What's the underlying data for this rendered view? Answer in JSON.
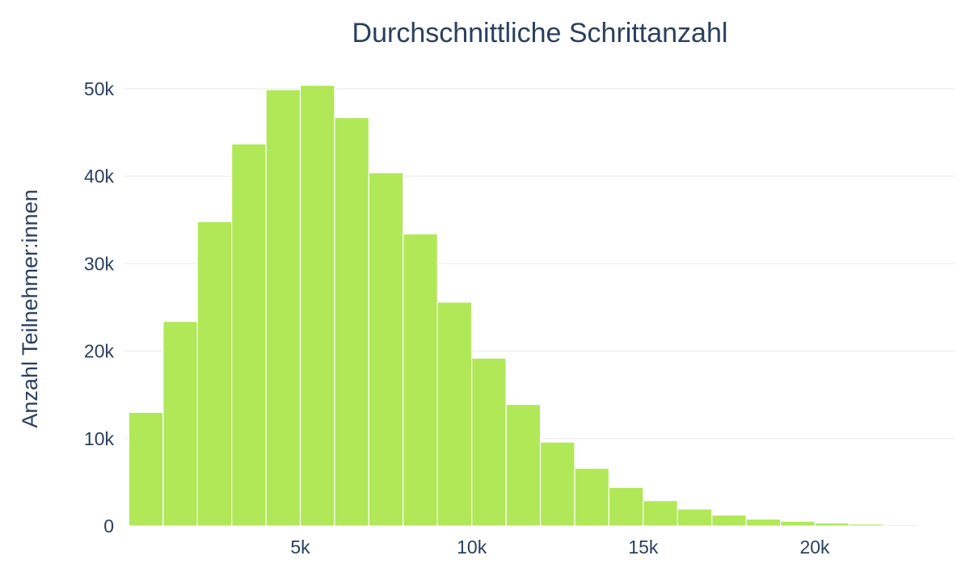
{
  "chart_data": {
    "type": "bar",
    "title": "Durchschnittliche Schrittanzahl",
    "xlabel": "",
    "ylabel": "Anzahl Teilnehmer:innen",
    "bin_width": 1000,
    "x": [
      500,
      1500,
      2500,
      3500,
      4500,
      5500,
      6500,
      7500,
      8500,
      9500,
      10500,
      11500,
      12500,
      13500,
      14500,
      15500,
      16500,
      17500,
      18500,
      19500,
      20500,
      21500,
      22500,
      23500
    ],
    "values": [
      13000,
      23400,
      34800,
      43700,
      49900,
      50400,
      46700,
      40400,
      33400,
      25600,
      19200,
      13900,
      9600,
      6600,
      4400,
      2900,
      1950,
      1250,
      800,
      550,
      350,
      220,
      140,
      90
    ],
    "xlim": [
      -150,
      24100
    ],
    "ylim": [
      0,
      53500
    ],
    "x_ticks": [
      5000,
      10000,
      15000,
      20000
    ],
    "x_tick_labels": [
      "5k",
      "10k",
      "15k",
      "20k"
    ],
    "y_ticks": [
      0,
      10000,
      20000,
      30000,
      40000,
      50000
    ],
    "y_tick_labels": [
      "0",
      "10k",
      "20k",
      "30k",
      "40k",
      "50k"
    ],
    "grid": true,
    "colors": {
      "bar": "#b0e857",
      "text": "#2a3f5f",
      "grid": "#ebedf1"
    }
  }
}
